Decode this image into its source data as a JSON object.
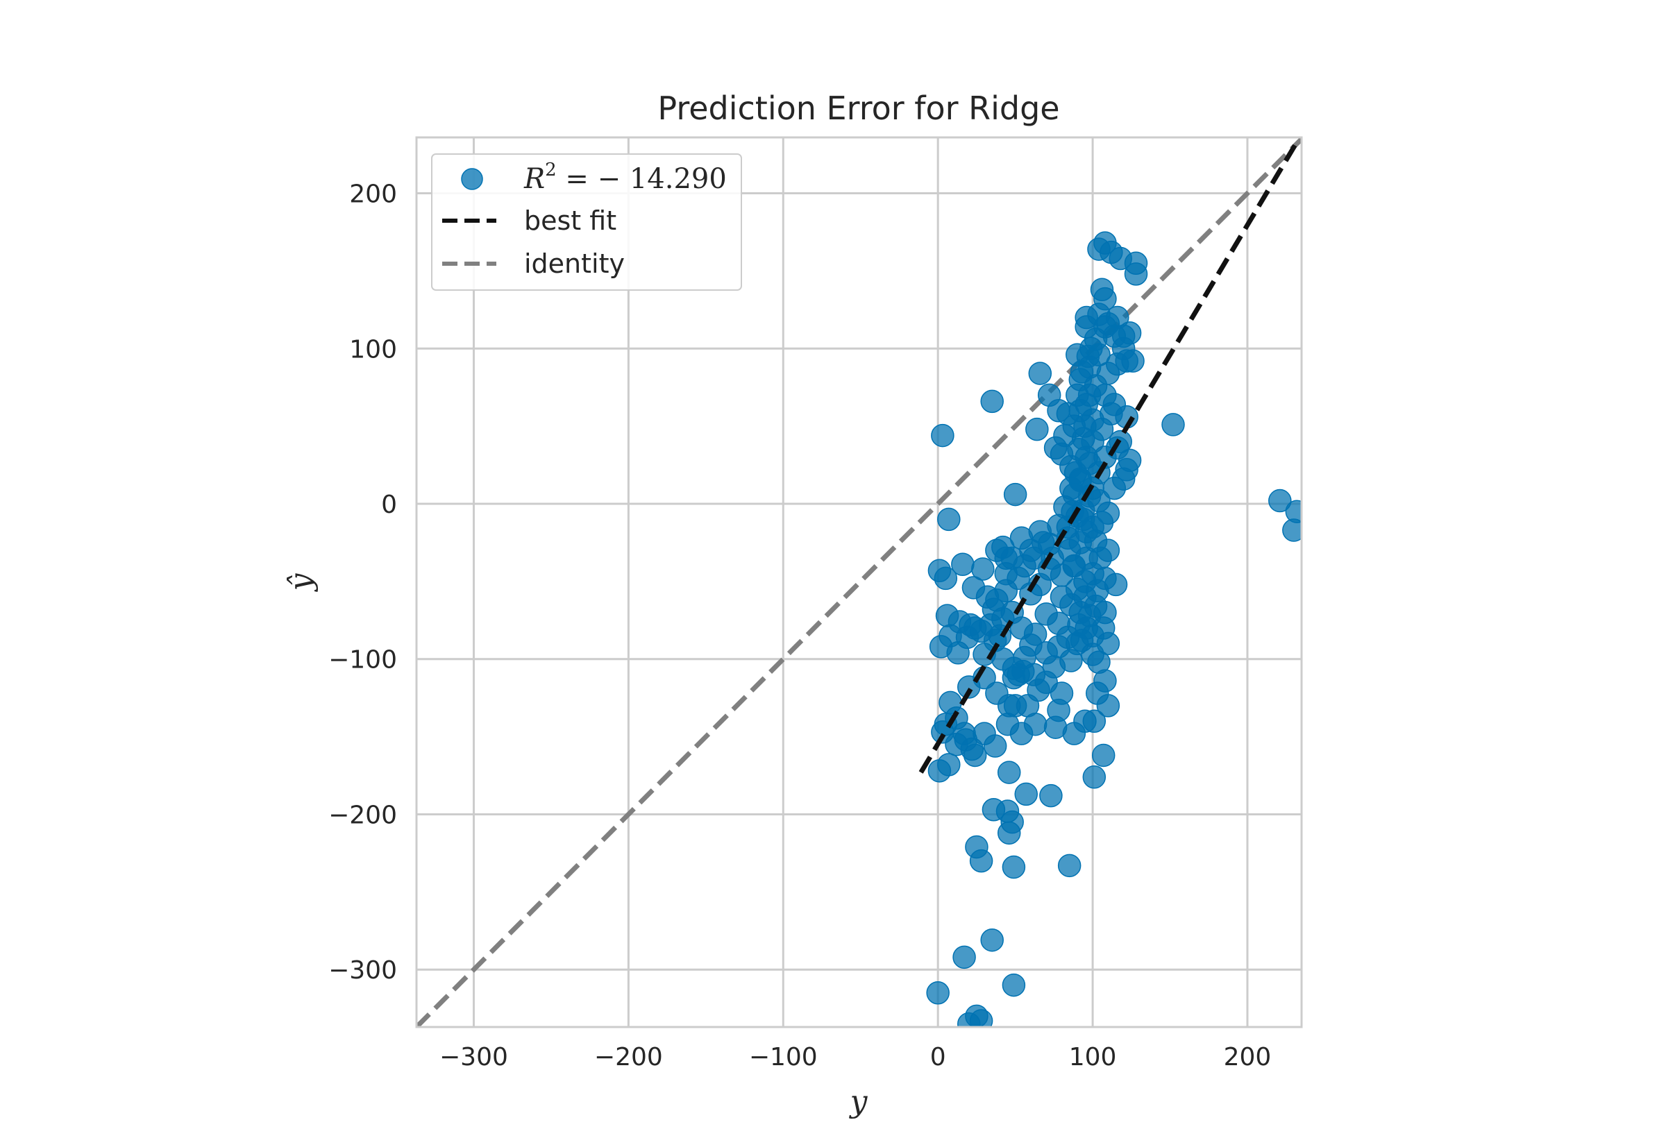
{
  "chart_data": {
    "type": "scatter",
    "title": "Prediction Error for Ridge",
    "xlabel": "y",
    "ylabel": "ŷ",
    "xlim": [
      -337,
      235
    ],
    "ylim": [
      -337,
      236
    ],
    "xticks": [
      -300,
      -200,
      -100,
      0,
      100,
      200
    ],
    "yticks": [
      -300,
      -200,
      -100,
      0,
      100,
      200
    ],
    "xtick_labels": [
      "−300",
      "−200",
      "−100",
      "0",
      "100",
      "200"
    ],
    "ytick_labels": [
      "−300",
      "−200",
      "−100",
      "0",
      "100",
      "200"
    ],
    "grid": true,
    "legend": {
      "placement": "top-left",
      "entries": [
        {
          "label_prefix": "R",
          "label_sup": "2",
          "label_rest": " = − 14.290",
          "kind": "marker"
        },
        {
          "label": "best fit",
          "kind": "line"
        },
        {
          "label": "identity",
          "kind": "line"
        }
      ]
    },
    "series": [
      {
        "name": "R² = −14.290",
        "color": "#0072b2",
        "points": [
          [
            0,
            -315
          ],
          [
            17,
            -292
          ],
          [
            35,
            -281
          ],
          [
            49,
            -310
          ],
          [
            25,
            -330
          ],
          [
            20,
            -335
          ],
          [
            28,
            -333
          ],
          [
            25,
            -221
          ],
          [
            28,
            -230
          ],
          [
            49,
            -234
          ],
          [
            85,
            -233
          ],
          [
            36,
            -197
          ],
          [
            45,
            -198
          ],
          [
            48,
            -205
          ],
          [
            46,
            -212
          ],
          [
            57,
            -187
          ],
          [
            73,
            -188
          ],
          [
            46,
            -173
          ],
          [
            101,
            -176
          ],
          [
            107,
            -162
          ],
          [
            1,
            -172
          ],
          [
            7,
            -168
          ],
          [
            12,
            -155
          ],
          [
            17,
            -148
          ],
          [
            22,
            -158
          ],
          [
            5,
            -142
          ],
          [
            3,
            -147
          ],
          [
            12,
            -138
          ],
          [
            18,
            -152
          ],
          [
            24,
            -162
          ],
          [
            30,
            -148
          ],
          [
            37,
            -156
          ],
          [
            45,
            -142
          ],
          [
            50,
            -130
          ],
          [
            54,
            -148
          ],
          [
            63,
            -142
          ],
          [
            76,
            -144
          ],
          [
            88,
            -148
          ],
          [
            95,
            -140
          ],
          [
            101,
            -140
          ],
          [
            110,
            -130
          ],
          [
            8,
            -128
          ],
          [
            20,
            -118
          ],
          [
            30,
            -112
          ],
          [
            38,
            -122
          ],
          [
            46,
            -130
          ],
          [
            49,
            -112
          ],
          [
            55,
            -108
          ],
          [
            62,
            -110
          ],
          [
            78,
            -133
          ],
          [
            80,
            -122
          ],
          [
            103,
            -122
          ],
          [
            108,
            -114
          ],
          [
            2,
            -92
          ],
          [
            8,
            -85
          ],
          [
            13,
            -96
          ],
          [
            19,
            -86
          ],
          [
            24,
            -80
          ],
          [
            30,
            -97
          ],
          [
            37,
            -88
          ],
          [
            42,
            -100
          ],
          [
            49,
            -106
          ],
          [
            56,
            -99
          ],
          [
            60,
            -91
          ],
          [
            70,
            -96
          ],
          [
            78,
            -92
          ],
          [
            86,
            -101
          ],
          [
            93,
            -88
          ],
          [
            100,
            -97
          ],
          [
            104,
            -102
          ],
          [
            6,
            -72
          ],
          [
            14,
            -76
          ],
          [
            21,
            -78
          ],
          [
            28,
            -82
          ],
          [
            36,
            -68
          ],
          [
            42,
            -74
          ],
          [
            48,
            -70
          ],
          [
            54,
            -80
          ],
          [
            63,
            -84
          ],
          [
            70,
            -71
          ],
          [
            78,
            -77
          ],
          [
            84,
            -86
          ],
          [
            91,
            -78
          ],
          [
            98,
            -72
          ],
          [
            102,
            -66
          ],
          [
            1,
            -43
          ],
          [
            5,
            -48
          ],
          [
            16,
            -39
          ],
          [
            23,
            -54
          ],
          [
            29,
            -42
          ],
          [
            32,
            -60
          ],
          [
            38,
            -62
          ],
          [
            44,
            -56
          ],
          [
            52,
            -48
          ],
          [
            60,
            -58
          ],
          [
            66,
            -52
          ],
          [
            72,
            -42
          ],
          [
            80,
            -46
          ],
          [
            88,
            -40
          ],
          [
            95,
            -50
          ],
          [
            103,
            -56
          ],
          [
            108,
            -48
          ],
          [
            115,
            -52
          ],
          [
            42,
            -28
          ],
          [
            48,
            -35
          ],
          [
            54,
            -22
          ],
          [
            60,
            -30
          ],
          [
            66,
            -18
          ],
          [
            72,
            -26
          ],
          [
            78,
            -14
          ],
          [
            84,
            -22
          ],
          [
            90,
            -8
          ],
          [
            96,
            -18
          ],
          [
            102,
            -24
          ],
          [
            106,
            -12
          ],
          [
            110,
            -30
          ],
          [
            7,
            -10
          ],
          [
            50,
            6
          ],
          [
            82,
            -2
          ],
          [
            88,
            6
          ],
          [
            94,
            -4
          ],
          [
            100,
            10
          ],
          [
            104,
            2
          ],
          [
            110,
            -6
          ],
          [
            114,
            10
          ],
          [
            120,
            16
          ],
          [
            122,
            22
          ],
          [
            124,
            28
          ],
          [
            116,
            36
          ],
          [
            108,
            30
          ],
          [
            104,
            20
          ],
          [
            98,
            26
          ],
          [
            92,
            16
          ],
          [
            86,
            24
          ],
          [
            80,
            32
          ],
          [
            76,
            36
          ],
          [
            82,
            44
          ],
          [
            88,
            50
          ],
          [
            94,
            42
          ],
          [
            100,
            54
          ],
          [
            106,
            48
          ],
          [
            112,
            58
          ],
          [
            118,
            40
          ],
          [
            122,
            56
          ],
          [
            114,
            64
          ],
          [
            108,
            70
          ],
          [
            102,
            76
          ],
          [
            96,
            64
          ],
          [
            90,
            70
          ],
          [
            84,
            58
          ],
          [
            78,
            60
          ],
          [
            72,
            70
          ],
          [
            66,
            84
          ],
          [
            64,
            48
          ],
          [
            35,
            66
          ],
          [
            3,
            44
          ],
          [
            152,
            51
          ],
          [
            221,
            2
          ],
          [
            230,
            -17
          ],
          [
            232,
            -5
          ],
          [
            92,
            80
          ],
          [
            98,
            88
          ],
          [
            104,
            96
          ],
          [
            110,
            84
          ],
          [
            116,
            90
          ],
          [
            122,
            92
          ],
          [
            126,
            92
          ],
          [
            120,
            100
          ],
          [
            114,
            108
          ],
          [
            108,
            114
          ],
          [
            102,
            106
          ],
          [
            96,
            114
          ],
          [
            90,
            96
          ],
          [
            104,
            122
          ],
          [
            110,
            116
          ],
          [
            116,
            120
          ],
          [
            124,
            110
          ],
          [
            120,
            108
          ],
          [
            96,
            120
          ],
          [
            106,
            138
          ],
          [
            108,
            132
          ],
          [
            104,
            164
          ],
          [
            108,
            168
          ],
          [
            112,
            162
          ],
          [
            118,
            158
          ],
          [
            128,
            155
          ],
          [
            128,
            148
          ],
          [
            85,
            -30
          ],
          [
            88,
            -40
          ],
          [
            92,
            -25
          ],
          [
            96,
            -35
          ],
          [
            100,
            -45
          ],
          [
            90,
            -55
          ],
          [
            95,
            -60
          ],
          [
            100,
            -15
          ],
          [
            94,
            -10
          ],
          [
            98,
            5
          ],
          [
            92,
            15
          ],
          [
            96,
            30
          ],
          [
            100,
            40
          ],
          [
            95,
            50
          ],
          [
            92,
            60
          ],
          [
            98,
            70
          ],
          [
            93,
            85
          ],
          [
            97,
            95
          ],
          [
            99,
            100
          ],
          [
            91,
            35
          ],
          [
            89,
            20
          ],
          [
            87,
            -5
          ],
          [
            86,
            -65
          ],
          [
            90,
            -90
          ],
          [
            105,
            -35
          ],
          [
            108,
            -70
          ],
          [
            110,
            -90
          ],
          [
            107,
            -80
          ],
          [
            75,
            -105
          ],
          [
            70,
            -115
          ],
          [
            65,
            -120
          ],
          [
            58,
            -130
          ],
          [
            52,
            -110
          ],
          [
            34,
            -78
          ],
          [
            40,
            -85
          ],
          [
            44,
            -45
          ],
          [
            38,
            -30
          ],
          [
            44,
            -35
          ],
          [
            56,
            -40
          ],
          [
            62,
            -35
          ],
          [
            68,
            -25
          ],
          [
            74,
            -35
          ],
          [
            80,
            -60
          ],
          [
            84,
            -15
          ],
          [
            86,
            10
          ],
          [
            92,
            -70
          ],
          [
            96,
            -80
          ],
          [
            100,
            -85
          ]
        ]
      }
    ],
    "best_fit": {
      "x": [
        -11,
        232
      ],
      "y": [
        -173,
        233
      ],
      "color": "#111111"
    },
    "identity": {
      "x": [
        -337,
        235
      ],
      "y": [
        -337,
        235
      ],
      "color": "#808080"
    }
  }
}
